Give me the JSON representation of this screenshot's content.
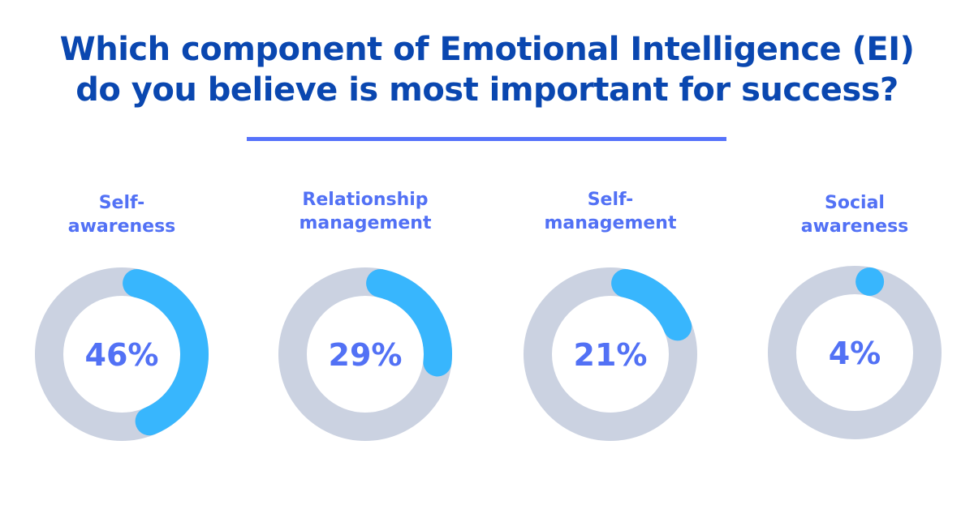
{
  "title": {
    "line1": "Which component of Emotional Intelligence (EI)",
    "line2": "do you believe is most important for success?"
  },
  "colors": {
    "title": "#0a47b0",
    "divider": "#5673fb",
    "label": "#5271f5",
    "track": "#cbd2e1",
    "arc": "#38b6fd"
  },
  "items": [
    {
      "label_line1": "Self-",
      "label_line2": "awareness",
      "value": 46,
      "value_text": "46%"
    },
    {
      "label_line1": "Relationship",
      "label_line2": "management",
      "value": 29,
      "value_text": "29%"
    },
    {
      "label_line1": "Self-",
      "label_line2": "management",
      "value": 21,
      "value_text": "21%"
    },
    {
      "label_line1": "Social",
      "label_line2": "awareness",
      "value": 4,
      "value_text": "4%"
    }
  ],
  "chart_data": {
    "type": "pie",
    "subtype": "donut-gauges",
    "title": "Which component of Emotional Intelligence (EI) do you believe is most important for success?",
    "categories": [
      "Self-awareness",
      "Relationship management",
      "Self-management",
      "Social awareness"
    ],
    "values": [
      46,
      29,
      21,
      4
    ],
    "unit": "%",
    "legend": "none",
    "grid": false
  }
}
